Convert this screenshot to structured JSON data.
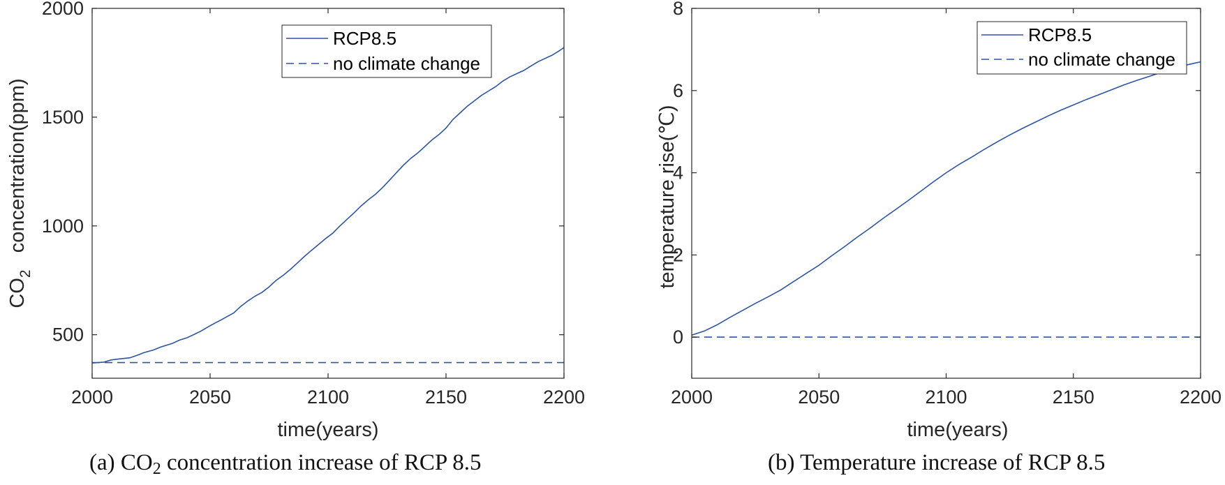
{
  "colors": {
    "line": "#2b54a7",
    "axis": "#262626",
    "text": "#262626"
  },
  "chart_data": [
    {
      "type": "line",
      "xlabel": "time(years)",
      "ylabel_parts": [
        "CO",
        "2",
        "   concentration(ppm)"
      ],
      "xlim": [
        2000,
        2200
      ],
      "ylim": [
        300,
        2000
      ],
      "xticks": [
        2000,
        2050,
        2100,
        2150,
        2200
      ],
      "yticks": [
        500,
        1000,
        1500,
        2000
      ],
      "grid": false,
      "legend_position": "top-right",
      "caption_parts": [
        "(a) CO",
        "2",
        " concentration increase of RCP 8.5"
      ],
      "series": [
        {
          "name": "RCP8.5",
          "style": "solid",
          "x": [
            2000,
            2005,
            2008,
            2011,
            2016,
            2019,
            2022,
            2026,
            2029,
            2031,
            2034,
            2037,
            2040,
            2043,
            2046,
            2049,
            2052,
            2055,
            2058,
            2060,
            2063,
            2066,
            2069,
            2072,
            2075,
            2078,
            2081,
            2084,
            2087,
            2090,
            2093,
            2096,
            2099,
            2102,
            2105,
            2108,
            2111,
            2114,
            2117,
            2120,
            2123,
            2126,
            2129,
            2132,
            2135,
            2138,
            2141,
            2144,
            2147,
            2150,
            2153,
            2156,
            2159,
            2162,
            2165,
            2168,
            2171,
            2174,
            2177,
            2180,
            2183,
            2186,
            2189,
            2192,
            2195,
            2198,
            2200
          ],
          "y": [
            370,
            374,
            384,
            388,
            394,
            405,
            418,
            430,
            443,
            450,
            460,
            475,
            485,
            500,
            516,
            535,
            553,
            570,
            588,
            600,
            630,
            655,
            677,
            695,
            720,
            750,
            773,
            800,
            830,
            860,
            888,
            915,
            942,
            967,
            1000,
            1030,
            1060,
            1092,
            1120,
            1145,
            1175,
            1210,
            1245,
            1280,
            1310,
            1335,
            1365,
            1395,
            1420,
            1450,
            1490,
            1520,
            1550,
            1575,
            1600,
            1620,
            1640,
            1665,
            1685,
            1700,
            1715,
            1735,
            1755,
            1770,
            1785,
            1805,
            1820
          ]
        },
        {
          "name": "no climate change",
          "style": "dashed",
          "x": [
            2000,
            2200
          ],
          "y": [
            372,
            372
          ]
        }
      ]
    },
    {
      "type": "line",
      "xlabel": "time(years)",
      "ylabel": "temperature rise(℃)",
      "xlim": [
        2000,
        2200
      ],
      "ylim": [
        -1,
        8
      ],
      "xticks": [
        2000,
        2050,
        2100,
        2150,
        2200
      ],
      "yticks": [
        0,
        2,
        4,
        6,
        8
      ],
      "grid": false,
      "legend_position": "top-right",
      "caption": "(b) Temperature increase of RCP 8.5",
      "series": [
        {
          "name": "RCP8.5",
          "style": "solid",
          "x": [
            2000,
            2005,
            2010,
            2015,
            2020,
            2025,
            2030,
            2035,
            2040,
            2045,
            2050,
            2055,
            2060,
            2065,
            2070,
            2075,
            2080,
            2085,
            2090,
            2095,
            2100,
            2105,
            2110,
            2115,
            2120,
            2125,
            2130,
            2135,
            2140,
            2145,
            2150,
            2155,
            2160,
            2165,
            2170,
            2175,
            2180,
            2185,
            2190,
            2195,
            2200
          ],
          "y": [
            0.05,
            0.15,
            0.3,
            0.48,
            0.65,
            0.82,
            0.98,
            1.15,
            1.35,
            1.55,
            1.75,
            1.98,
            2.2,
            2.43,
            2.65,
            2.88,
            3.1,
            3.32,
            3.55,
            3.78,
            4.0,
            4.2,
            4.38,
            4.57,
            4.75,
            4.92,
            5.08,
            5.23,
            5.38,
            5.52,
            5.65,
            5.78,
            5.9,
            6.02,
            6.14,
            6.25,
            6.35,
            6.45,
            6.55,
            6.63,
            6.7
          ]
        },
        {
          "name": "no climate change",
          "style": "dashed",
          "x": [
            2000,
            2200
          ],
          "y": [
            0,
            0
          ]
        }
      ]
    }
  ]
}
